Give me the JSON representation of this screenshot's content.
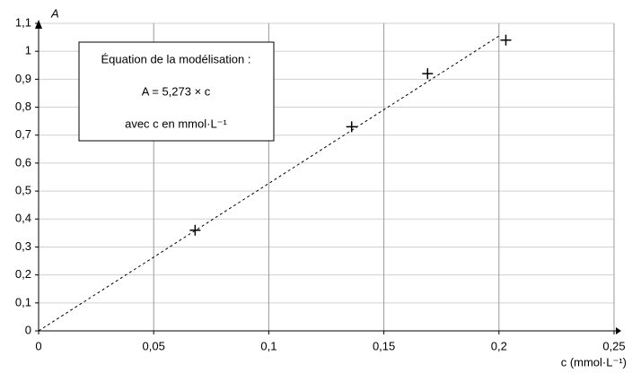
{
  "chart_data": {
    "type": "scatter",
    "x_label": "c (mmol·L⁻¹)",
    "y_label": "A",
    "annotation": [
      "Équation de la modélisation :",
      "A = 5,273 × c",
      "avec c en mmol·L⁻¹"
    ],
    "series": [
      {
        "color": "#000000",
        "style": "dashed-line",
        "x": [
          0,
          0.2
        ],
        "values": [
          0,
          1.0546
        ]
      },
      {
        "color": "#000000",
        "style": "plus",
        "x": [
          0.068,
          0.136,
          0.169,
          0.203
        ],
        "values": [
          0.36,
          0.73,
          0.92,
          1.04
        ]
      }
    ],
    "xlim": [
      0,
      0.25
    ],
    "xticks": [
      0,
      {
        "value": 0.05,
        "label": "0,05"
      },
      {
        "value": 0.1,
        "label": "0,1"
      },
      {
        "value": 0.15,
        "label": "0,15"
      },
      {
        "value": 0.2,
        "label": "0,2"
      },
      {
        "value": 0.25,
        "label": "0,25"
      }
    ],
    "ylim": [
      0,
      1.1
    ],
    "yticks": [
      0,
      {
        "value": 0.1,
        "label": "0,1"
      },
      {
        "value": 0.2,
        "label": "0,2"
      },
      {
        "value": 0.3,
        "label": "0,3"
      },
      {
        "value": 0.4,
        "label": "0,4"
      },
      {
        "value": 0.5,
        "label": "0,5"
      },
      {
        "value": 0.6,
        "label": "0,6"
      },
      {
        "value": 0.7,
        "label": "0,7"
      },
      {
        "value": 0.8,
        "label": "0,8"
      },
      {
        "value": 0.9,
        "label": "0,9"
      },
      1,
      {
        "value": 1.1,
        "label": "1,1"
      }
    ],
    "grid": true
  }
}
